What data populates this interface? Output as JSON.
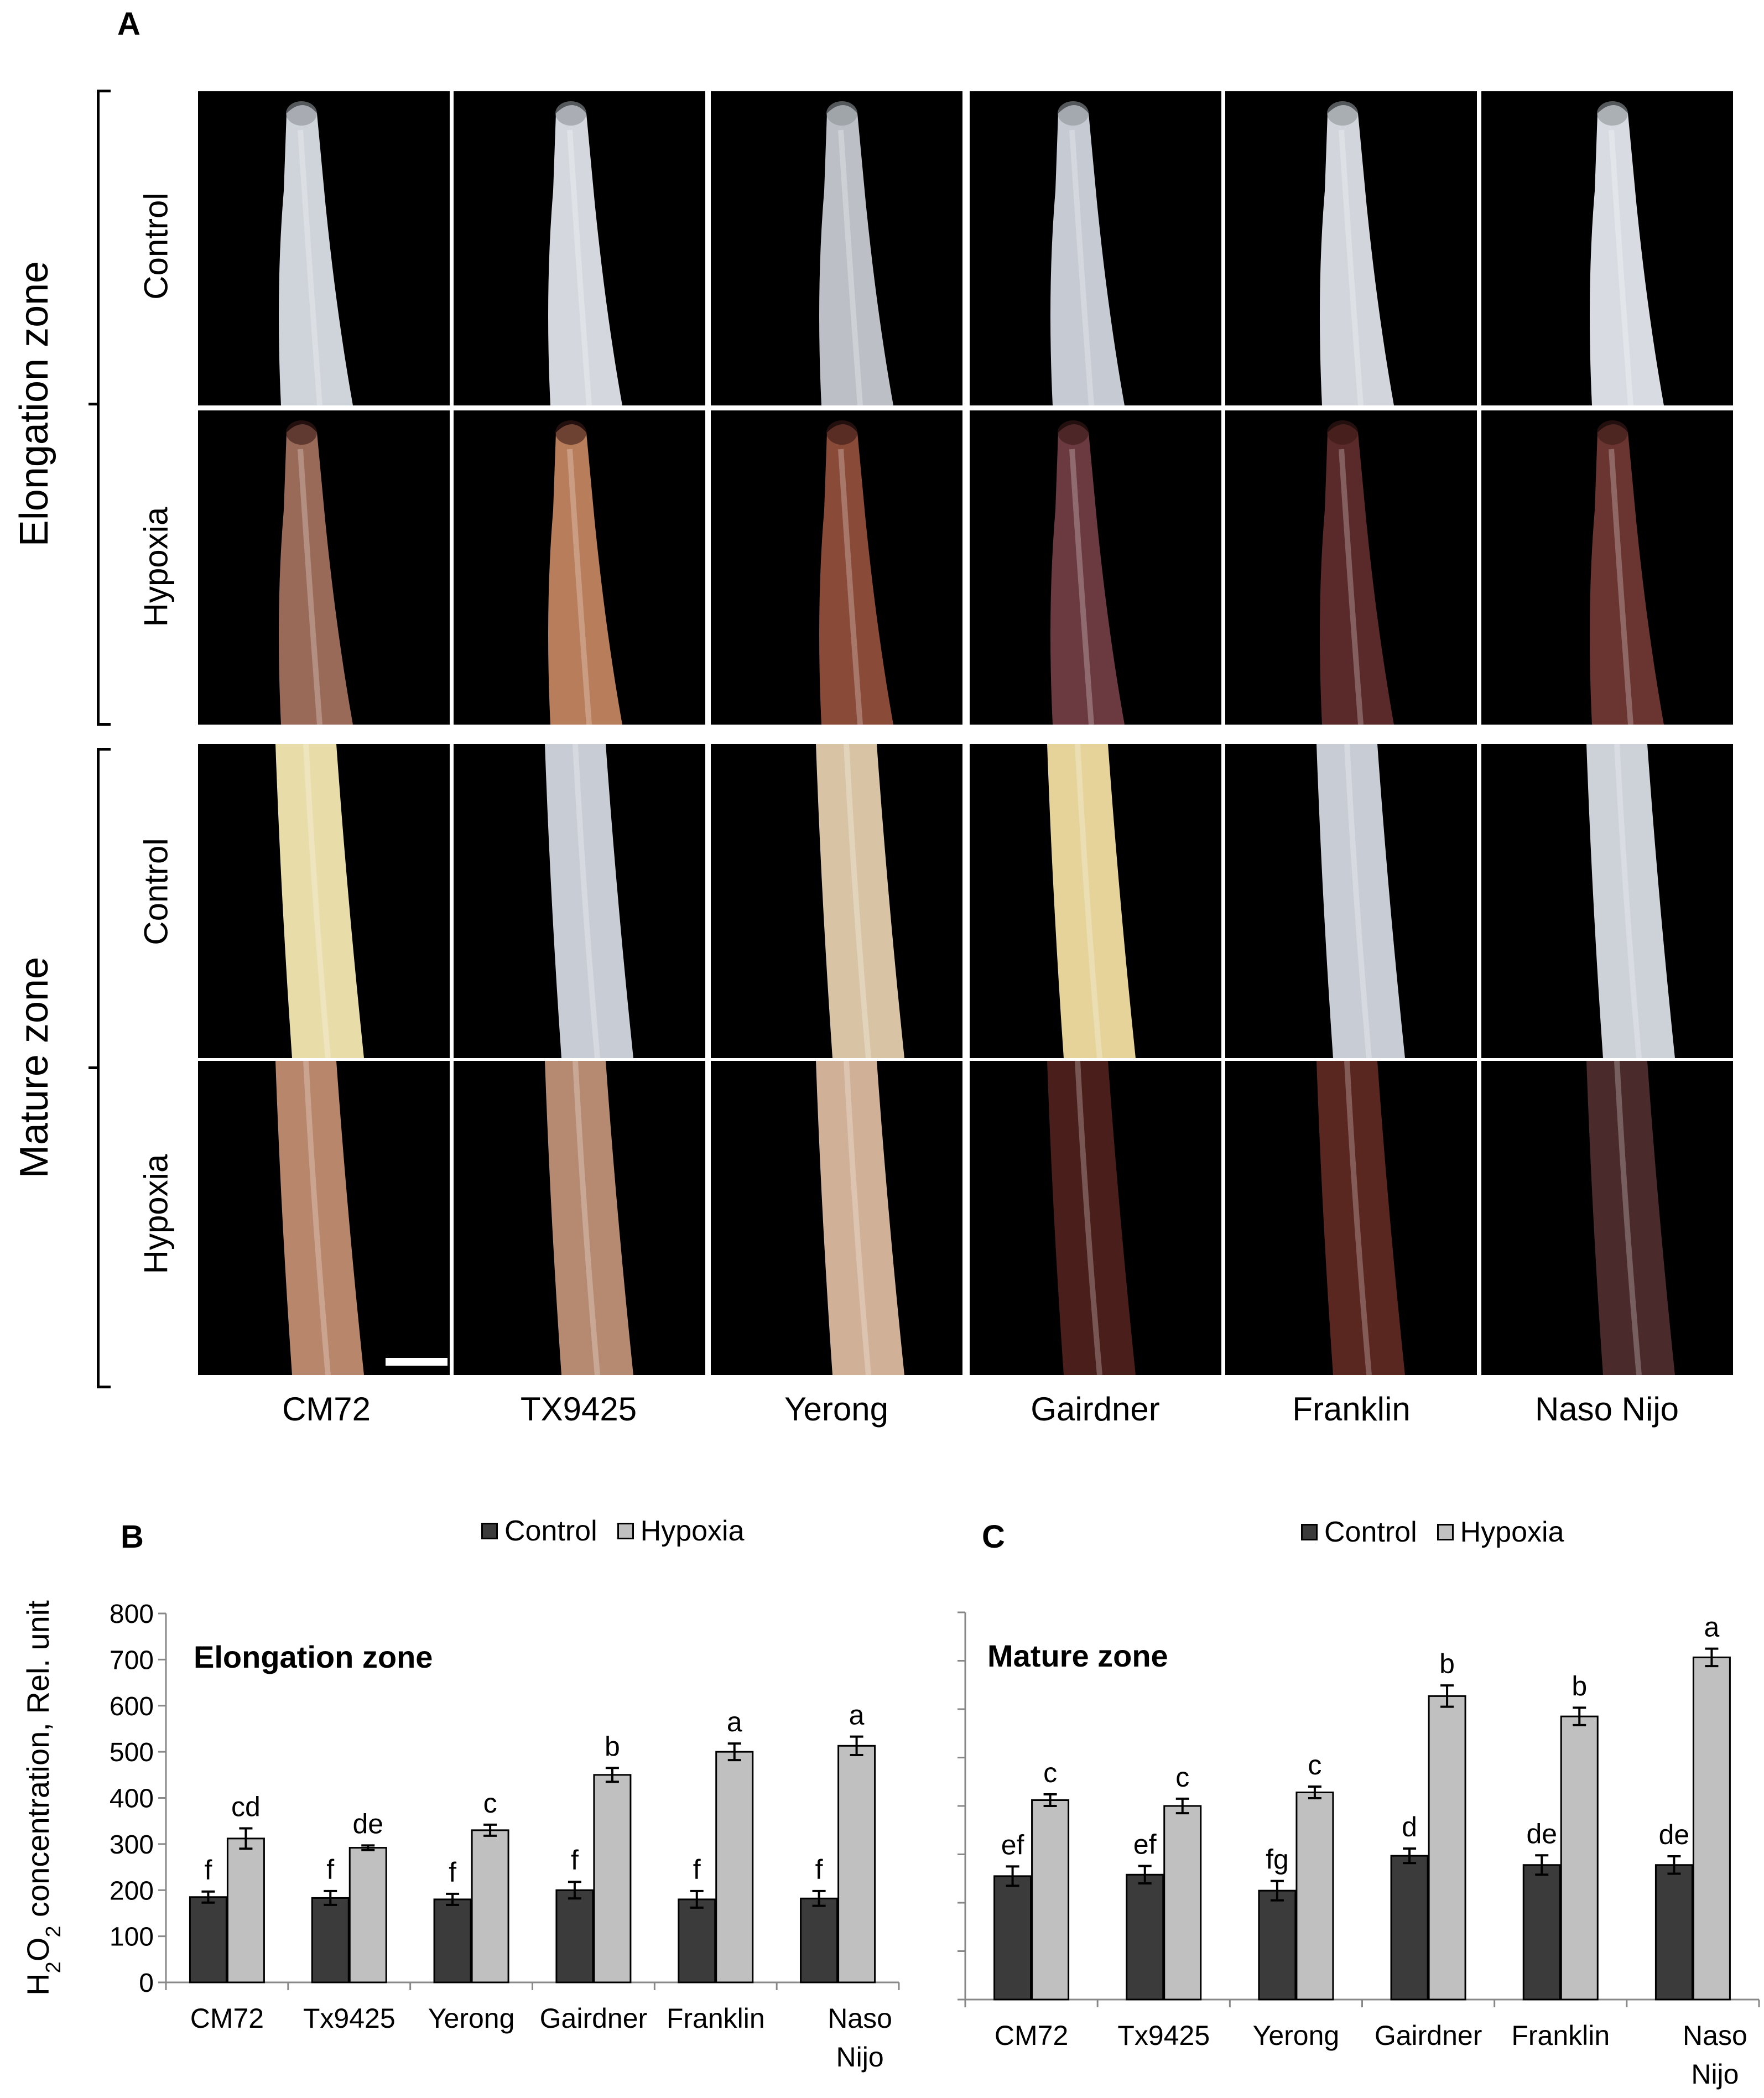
{
  "panels": {
    "a": "A",
    "b": "B",
    "c": "C"
  },
  "zones": {
    "elongation": "Elongation zone",
    "mature": "Mature zone"
  },
  "conditions": {
    "control": "Control",
    "hypoxia": "Hypoxia"
  },
  "cultivars": [
    "CM72",
    "TX9425",
    "Yerong",
    "Gairdner",
    "Franklin",
    "Naso Nijo"
  ],
  "photo_colors": {
    "background": "#000000",
    "control_root": "#c8ccd4",
    "hypoxia_root_light": "#b88a6e",
    "hypoxia_root_dark": "#5a2a22",
    "mature_control_yellow": "#e8dca8"
  },
  "chart_colors": {
    "control": "#3b3b3b",
    "hypoxia": "#c0c0c0"
  },
  "chart_data": [
    {
      "type": "bar",
      "panel": "B",
      "title": "Elongation zone",
      "ylabel_parts": [
        "H",
        "2",
        "O",
        "2",
        " concentration, Rel. unit"
      ],
      "ylim": [
        0,
        800
      ],
      "yticks": [
        "0",
        "100",
        "200",
        "300",
        "400",
        "500",
        "600",
        "700",
        "800"
      ],
      "categories": [
        "CM72",
        "Tx9425",
        "Yerong",
        "Gairdner",
        "Franklin",
        "Naso Nijo"
      ],
      "category_lines": [
        [
          "CM72"
        ],
        [
          "Tx9425"
        ],
        [
          "Yerong"
        ],
        [
          "Gairdner"
        ],
        [
          "Franklin"
        ],
        [
          "Naso",
          "Nijo"
        ]
      ],
      "legend": [
        "Control",
        "Hypoxia"
      ],
      "series": [
        {
          "name": "Control",
          "values": [
            185,
            183,
            180,
            200,
            180,
            182
          ],
          "errors": [
            12,
            15,
            12,
            18,
            18,
            16
          ],
          "letters": [
            "f",
            "f",
            "f",
            "f",
            "f",
            "f"
          ]
        },
        {
          "name": "Hypoxia",
          "values": [
            312,
            292,
            330,
            450,
            500,
            513
          ],
          "errors": [
            22,
            5,
            12,
            15,
            18,
            20
          ],
          "letters": [
            "cd",
            "de",
            "c",
            "b",
            "a",
            "a"
          ]
        }
      ]
    },
    {
      "type": "bar",
      "panel": "C",
      "title": "Mature zone",
      "ylim": [
        0,
        800
      ],
      "categories": [
        "CM72",
        "Tx9425",
        "Yerong",
        "Gairdner",
        "Franklin",
        "Naso Nijo"
      ],
      "category_lines": [
        [
          "CM72"
        ],
        [
          "Tx9425"
        ],
        [
          "Yerong"
        ],
        [
          "Gairdner"
        ],
        [
          "Franklin"
        ],
        [
          "Naso",
          "Nijo"
        ]
      ],
      "legend": [
        "Control",
        "Hypoxia"
      ],
      "series": [
        {
          "name": "Control",
          "values": [
            255,
            258,
            225,
            297,
            278,
            278
          ],
          "errors": [
            20,
            18,
            20,
            15,
            20,
            18
          ],
          "letters": [
            "ef",
            "ef",
            "fg",
            "d",
            "de",
            "de"
          ]
        },
        {
          "name": "Hypoxia",
          "values": [
            412,
            400,
            428,
            627,
            585,
            707
          ],
          "errors": [
            12,
            15,
            12,
            22,
            18,
            18
          ],
          "letters": [
            "c",
            "c",
            "c",
            "b",
            "b",
            "a"
          ]
        }
      ]
    }
  ]
}
